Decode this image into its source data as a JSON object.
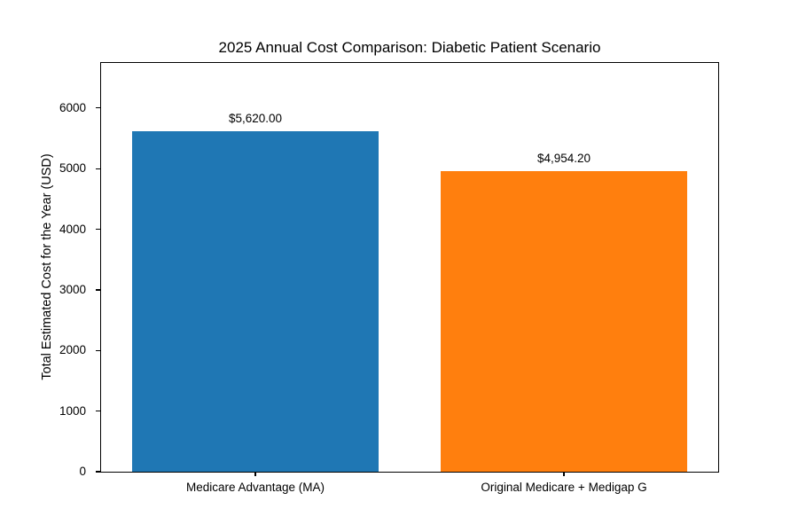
{
  "chart_data": {
    "type": "bar",
    "title": "2025 Annual Cost Comparison: Diabetic Patient Scenario",
    "categories": [
      "Medicare Advantage (MA)",
      "Original Medicare + Medigap G"
    ],
    "values": [
      5620.0,
      4954.2
    ],
    "value_labels": [
      "$5,620.00",
      "$4,954.20"
    ],
    "bar_colors": [
      "#1f77b4",
      "#ff7f0e"
    ],
    "xlabel": "",
    "ylabel": "Total Estimated Cost for the Year (USD)",
    "yticks": [
      0,
      1000,
      2000,
      3000,
      4000,
      5000,
      6000
    ],
    "ylim": [
      0,
      6744
    ],
    "bar_width": 0.8,
    "grid": false,
    "legend": false,
    "background_color": "#ffffff",
    "text_color": "#000000"
  }
}
